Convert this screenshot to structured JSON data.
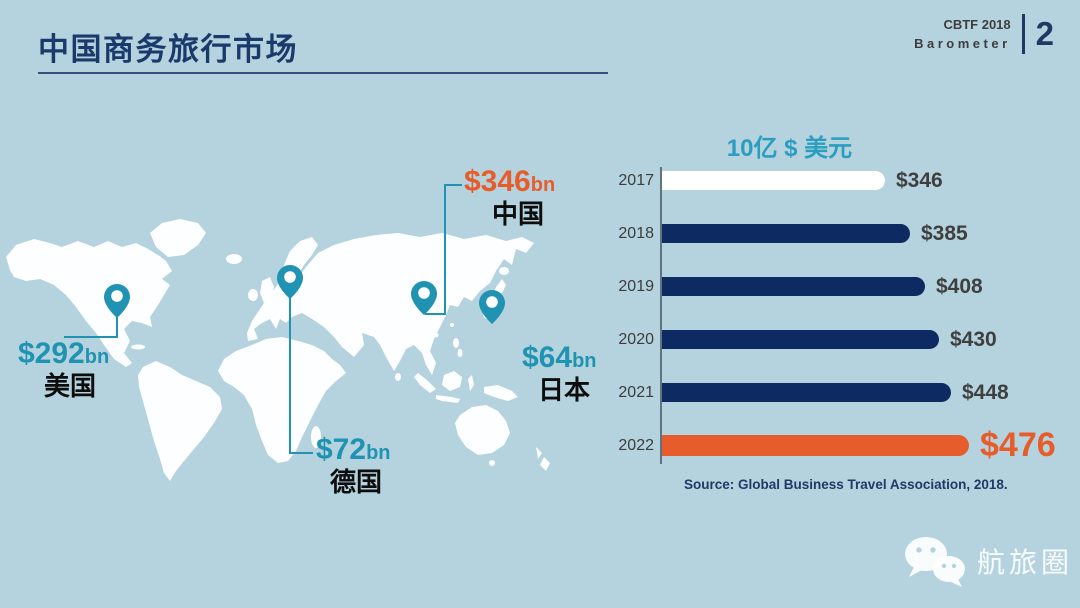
{
  "header": {
    "title": "中国商务旅行市场",
    "badge_line1": "CBTF 2018",
    "badge_line2": "Barometer",
    "page_number": "2"
  },
  "map": {
    "land_color": "#fdfeff",
    "pin_color": "#1f93b1",
    "markers": [
      {
        "id": "usa",
        "amount": "$292",
        "unit": "bn",
        "country": "美国",
        "accent": "#1f93b1"
      },
      {
        "id": "germany",
        "amount": "$72",
        "unit": "bn",
        "country": "德国",
        "accent": "#1f93b1"
      },
      {
        "id": "china",
        "amount": "$346",
        "unit": "bn",
        "country": "中国",
        "accent": "#e65c2a"
      },
      {
        "id": "japan",
        "amount": "$64",
        "unit": "bn",
        "country": "日本",
        "accent": "#1f93b1"
      }
    ]
  },
  "chart_data": {
    "type": "bar",
    "orientation": "horizontal",
    "title": "10亿 $ 美元",
    "categories": [
      "2017",
      "2018",
      "2019",
      "2020",
      "2021",
      "2022"
    ],
    "values": [
      346,
      385,
      408,
      430,
      448,
      476
    ],
    "value_labels": [
      "$346",
      "$385",
      "$408",
      "$430",
      "$448",
      "$476"
    ],
    "bar_colors": [
      "#ffffff",
      "#0e2a63",
      "#0e2a63",
      "#0e2a63",
      "#0e2a63",
      "#e65c2a"
    ],
    "highlight_index": 5,
    "xlim": [
      0,
      500
    ],
    "grid": false,
    "legend": false,
    "source": "Source: Global Business Travel Association, 2018."
  },
  "watermark": {
    "label": "航旅圈"
  },
  "colors": {
    "background": "#b5d3de",
    "title_navy": "#1b3a6b",
    "bar_navy": "#0e2a63",
    "accent_orange": "#e65c2a",
    "accent_teal": "#1f93b1"
  }
}
